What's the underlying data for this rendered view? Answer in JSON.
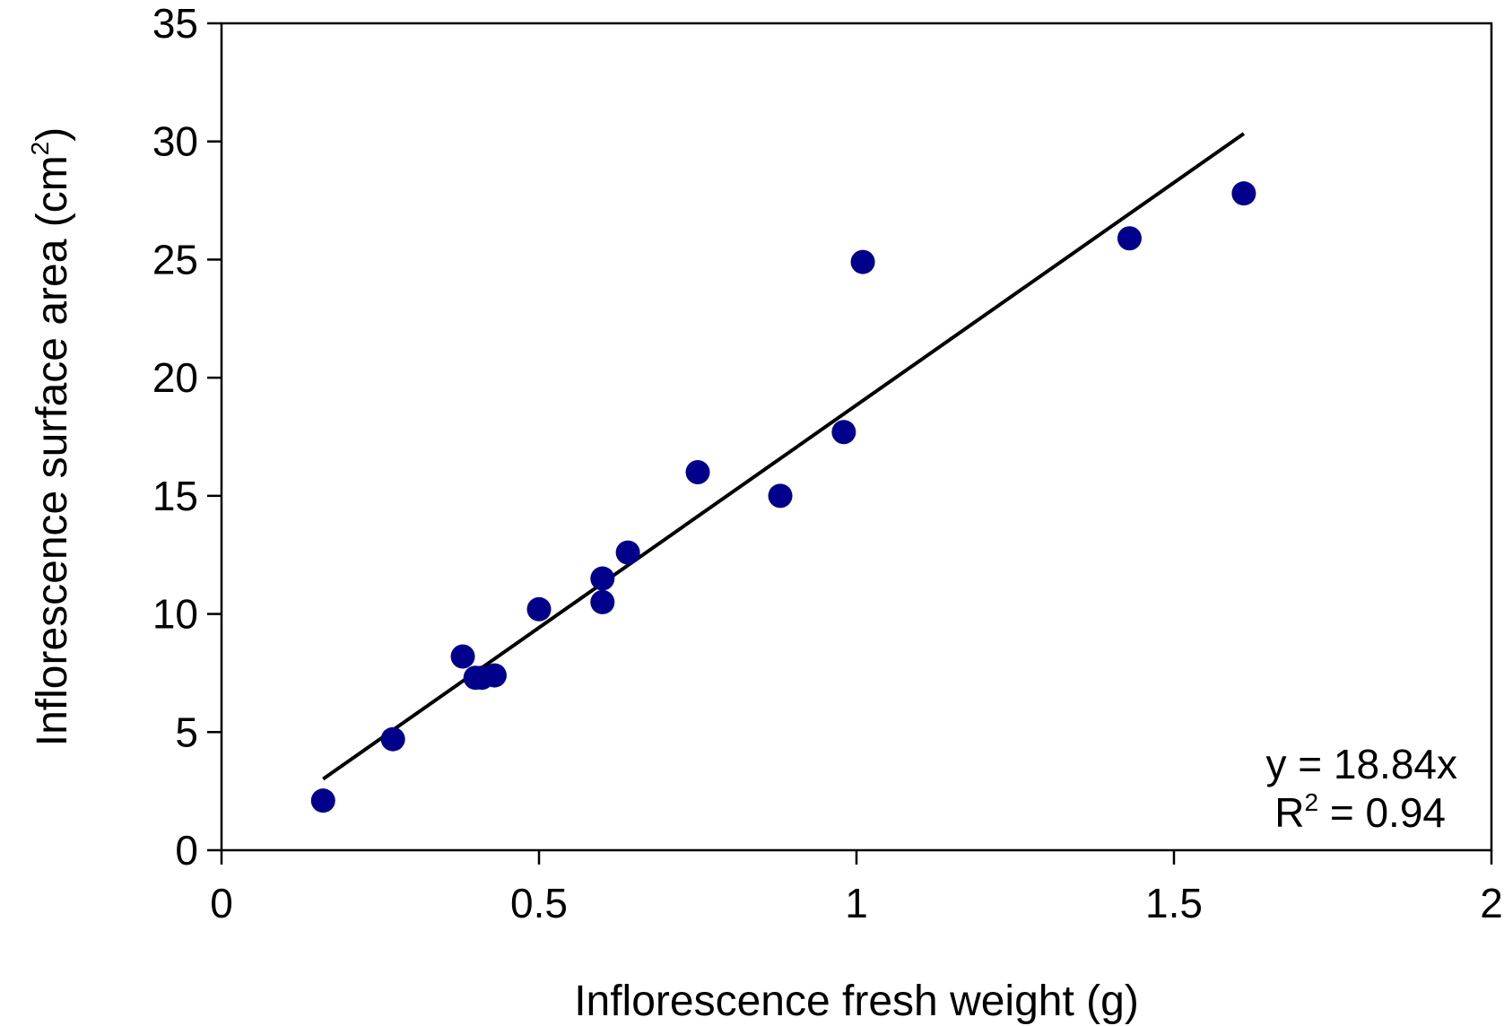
{
  "chart_data": {
    "type": "scatter",
    "title": "",
    "xlabel": "Inflorescence fresh weight (g)",
    "ylabel": "Inflorescence surface area (cm",
    "ylabel_superscript": "2",
    "ylabel_suffix": ")",
    "xlim": [
      0,
      2
    ],
    "ylim": [
      0,
      35
    ],
    "xticks": [
      "0",
      "0.5",
      "1",
      "1.5",
      "2"
    ],
    "yticks": [
      "0",
      "5",
      "10",
      "15",
      "20",
      "25",
      "30",
      "35"
    ],
    "grid": false,
    "legend": "none",
    "series": [
      {
        "x": [
          0.16,
          0.27,
          0.38,
          0.4,
          0.41,
          0.43,
          0.5,
          0.6,
          0.6,
          0.64,
          0.75,
          0.88,
          0.98,
          1.01,
          1.43,
          1.61
        ],
        "y": [
          2.1,
          4.7,
          8.2,
          7.3,
          7.3,
          7.4,
          10.2,
          11.5,
          10.5,
          12.6,
          16.0,
          15.0,
          17.7,
          24.9,
          25.9,
          27.8
        ],
        "color": "#00008B"
      }
    ],
    "trendline": {
      "slope": 18.84,
      "x_range": [
        0.16,
        1.61
      ],
      "color": "#000000"
    },
    "annotations": {
      "equation": "y = 18.84x",
      "r2_label": "R",
      "r2_sup": "2",
      "r2_value": " = 0.94"
    }
  }
}
